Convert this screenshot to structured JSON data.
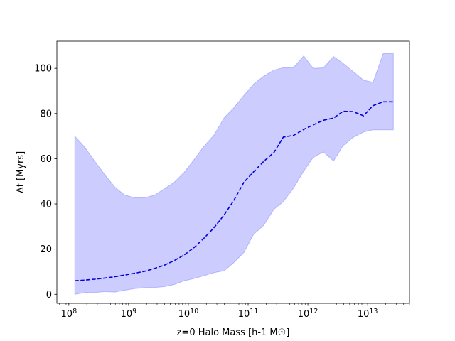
{
  "chart_data": {
    "type": "area",
    "title": "",
    "xlabel": "z=0 Halo Mass [h-1 M☉]",
    "ylabel": "Δt [Myrs]",
    "xscale": "log",
    "xlim": [
      7.8,
      13.7
    ],
    "ylim": [
      -4,
      112
    ],
    "grid": false,
    "legend": "none",
    "x_ticks": [
      8,
      9,
      10,
      11,
      12,
      13
    ],
    "x_tick_labels": [
      "10^8",
      "10^9",
      "10^10",
      "10^11",
      "10^12",
      "10^13"
    ],
    "y_ticks": [
      0,
      20,
      40,
      60,
      80,
      100
    ],
    "y_tick_labels": [
      "0",
      "20",
      "40",
      "60",
      "80",
      "100"
    ],
    "colors": {
      "band": "#0000ff",
      "line": "#0000dd"
    },
    "log_mass": [
      8.1,
      8.27,
      8.43,
      8.6,
      8.77,
      8.93,
      9.1,
      9.27,
      9.43,
      9.6,
      9.76,
      9.93,
      10.1,
      10.26,
      10.43,
      10.6,
      10.76,
      10.93,
      11.09,
      11.26,
      11.43,
      11.59,
      11.76,
      11.93,
      12.09,
      12.26,
      12.43,
      12.59,
      12.76,
      12.93,
      13.09,
      13.26,
      13.43
    ],
    "series": [
      {
        "name": "",
        "role": "median",
        "style": "dashed",
        "values": [
          6,
          6.3,
          6.7,
          7.2,
          7.8,
          8.5,
          9.3,
          10.2,
          11.4,
          12.9,
          14.9,
          17.4,
          20.8,
          24.8,
          29.5,
          35.2,
          41.5,
          49.6,
          54.2,
          58.8,
          62.7,
          69.6,
          70.3,
          73,
          75,
          77,
          78,
          81,
          80.8,
          79,
          83.5,
          85.2,
          85.2
        ]
      },
      {
        "name": "",
        "role": "upper",
        "style": "band",
        "values": [
          70,
          65,
          59,
          53,
          47.5,
          44,
          42.7,
          42.8,
          43.8,
          46.7,
          49.5,
          54,
          59.8,
          65.5,
          70.5,
          78.2,
          82.5,
          88,
          93,
          96.5,
          99.2,
          100.3,
          100.4,
          105.5,
          100,
          100.2,
          105.2,
          102.2,
          98.5,
          94.8,
          93.8,
          106.5,
          106.5
        ]
      },
      {
        "name": "",
        "role": "lower",
        "style": "band",
        "values": [
          0,
          0.7,
          0.8,
          1.2,
          1,
          1.8,
          2.5,
          2.9,
          3,
          3.4,
          4.3,
          6,
          7,
          8.2,
          9.6,
          10.4,
          14,
          18.5,
          26.5,
          30.5,
          37.6,
          41,
          47,
          54.5,
          60.6,
          63,
          59,
          65.8,
          69.5,
          71.8,
          72.8,
          72.8,
          72.8
        ]
      }
    ]
  }
}
